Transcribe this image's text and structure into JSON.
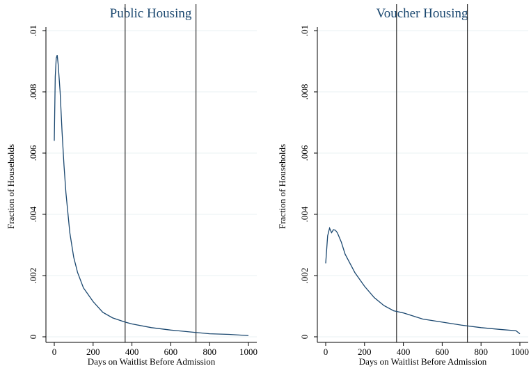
{
  "chart_data": [
    {
      "type": "line",
      "title": "Public Housing",
      "xlabel": "Days on Waitlist Before Admission",
      "ylabel": "Fraction of Households",
      "x": [
        0,
        5,
        10,
        15,
        20,
        30,
        40,
        50,
        60,
        80,
        100,
        120,
        150,
        200,
        250,
        300,
        365,
        400,
        500,
        600,
        700,
        800,
        900,
        1000
      ],
      "series": [
        {
          "name": "Public Housing",
          "color": "#1a476f",
          "values": [
            0.0064,
            0.0085,
            0.0091,
            0.0092,
            0.0089,
            0.008,
            0.0067,
            0.0056,
            0.0047,
            0.0034,
            0.0026,
            0.0021,
            0.0016,
            0.00115,
            0.0008,
            0.00062,
            0.00048,
            0.00042,
            0.0003,
            0.00022,
            0.00016,
            0.0001,
            8e-05,
            4e-05
          ]
        }
      ],
      "vlines": [
        365,
        730
      ],
      "xlim": [
        0,
        1000
      ],
      "xticks": [
        0,
        200,
        400,
        600,
        800,
        1000
      ],
      "ylim": [
        0,
        0.01
      ],
      "yticks": [
        0,
        {
          "value": 0.002,
          "label": ".002"
        },
        {
          "value": 0.004,
          "label": ".004"
        },
        {
          "value": 0.006,
          "label": ".006"
        },
        {
          "value": 0.008,
          "label": ".008"
        },
        {
          "value": 0.01,
          "label": ".01"
        }
      ],
      "grid": true
    },
    {
      "type": "line",
      "title": "Voucher Housing",
      "xlabel": "Days on Waitlist Before Admission",
      "ylabel": "Fraction of Households",
      "x": [
        0,
        10,
        20,
        30,
        40,
        50,
        60,
        80,
        100,
        150,
        200,
        250,
        300,
        350,
        365,
        400,
        500,
        600,
        700,
        800,
        900,
        980,
        1000
      ],
      "series": [
        {
          "name": "Voucher Housing",
          "color": "#1a476f",
          "values": [
            0.0024,
            0.0033,
            0.00355,
            0.0034,
            0.0035,
            0.00348,
            0.0034,
            0.0031,
            0.0027,
            0.0021,
            0.00165,
            0.00128,
            0.00102,
            0.00085,
            0.00083,
            0.00078,
            0.00058,
            0.00048,
            0.00038,
            0.0003,
            0.00024,
            0.0002,
            0.0001
          ]
        }
      ],
      "vlines": [
        365,
        730
      ],
      "xlim": [
        0,
        1000
      ],
      "xticks": [
        0,
        200,
        400,
        600,
        800,
        1000
      ],
      "ylim": [
        0,
        0.01
      ],
      "yticks": [
        0,
        {
          "value": 0.002,
          "label": ".002"
        },
        {
          "value": 0.004,
          "label": ".004"
        },
        {
          "value": 0.006,
          "label": ".006"
        },
        {
          "value": 0.008,
          "label": ".008"
        },
        {
          "value": 0.01,
          "label": ".01"
        }
      ],
      "grid": true
    }
  ]
}
